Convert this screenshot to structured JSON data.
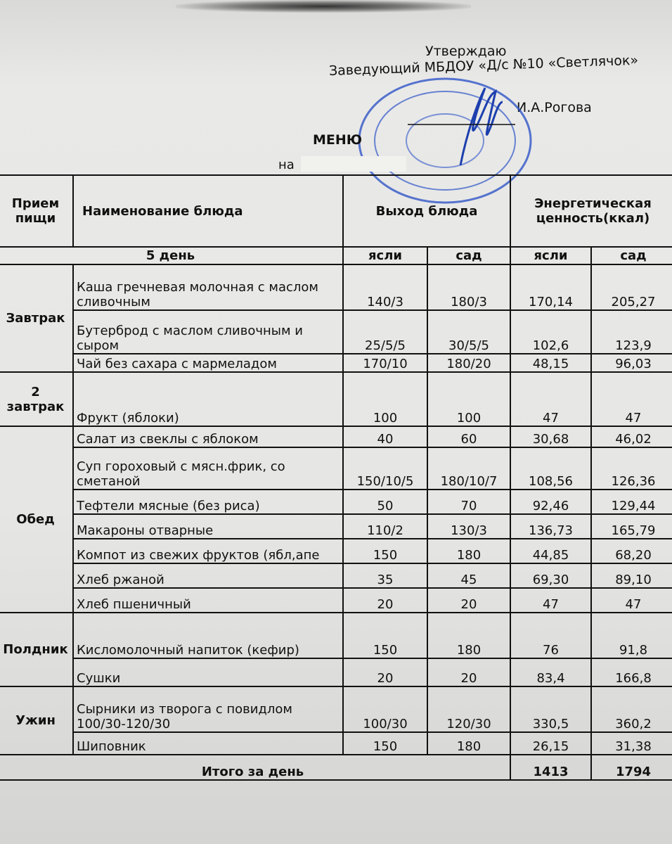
{
  "header": {
    "approve": "Утверждаю",
    "position": "Заведующий МБДОУ «Д/с №10 «Светлячок»",
    "signer": "И.А.Рогова",
    "title": "МЕНЮ",
    "date_prefix": "на"
  },
  "stamp": {
    "color": "#2f55c8",
    "signature_color": "#1d3fae"
  },
  "table": {
    "col_meal": "Прием пищи",
    "col_dish": "Наименование блюда",
    "col_output": "Выход блюда",
    "col_energy": "Энергетическая ценность(ккал)",
    "day": "5 день",
    "sub_yasli": "ясли",
    "sub_sad": "сад",
    "meals": [
      {
        "meal": "Завтрак",
        "items": [
          {
            "name": "Каша гречневая молочная с маслом сливочным",
            "out_yasli": "140/3",
            "out_sad": "180/3",
            "kcal_yasli": "170,14",
            "kcal_sad": "205,27"
          },
          {
            "name": "Бутерброд с маслом сливочным и сыром",
            "out_yasli": "25/5/5",
            "out_sad": "30/5/5",
            "kcal_yasli": "102,6",
            "kcal_sad": "123,9"
          },
          {
            "name": "Чай без сахара с мармеладом",
            "out_yasli": "170/10",
            "out_sad": "180/20",
            "kcal_yasli": "48,15",
            "kcal_sad": "96,03"
          }
        ]
      },
      {
        "meal": "2 завтрак",
        "items": [
          {
            "name": "Фрукт (яблоки)",
            "out_yasli": "100",
            "out_sad": "100",
            "kcal_yasli": "47",
            "kcal_sad": "47"
          }
        ]
      },
      {
        "meal": "Обед",
        "items": [
          {
            "name": "Салат из свеклы с яблоком",
            "out_yasli": "40",
            "out_sad": "60",
            "kcal_yasli": "30,68",
            "kcal_sad": "46,02"
          },
          {
            "name": "Суп гороховый с мясн.фрик, со сметаной",
            "out_yasli": "150/10/5",
            "out_sad": "180/10/7",
            "kcal_yasli": "108,56",
            "kcal_sad": "126,36"
          },
          {
            "name": "Тефтели мясные (без риса)",
            "out_yasli": "50",
            "out_sad": "70",
            "kcal_yasli": "92,46",
            "kcal_sad": "129,44"
          },
          {
            "name": "Макароны отварные",
            "out_yasli": "110/2",
            "out_sad": "130/3",
            "kcal_yasli": "136,73",
            "kcal_sad": "165,79"
          },
          {
            "name": "Компот из свежих фруктов (ябл,апе",
            "out_yasli": "150",
            "out_sad": "180",
            "kcal_yasli": "44,85",
            "kcal_sad": "68,20"
          },
          {
            "name": "Хлеб ржаной",
            "out_yasli": "35",
            "out_sad": "45",
            "kcal_yasli": "69,30",
            "kcal_sad": "89,10"
          },
          {
            "name": "Хлеб пшеничный",
            "out_yasli": "20",
            "out_sad": "20",
            "kcal_yasli": "47",
            "kcal_sad": "47"
          }
        ]
      },
      {
        "meal": "Полдник",
        "items": [
          {
            "name": "Кисломолочный напиток (кефир)",
            "out_yasli": "150",
            "out_sad": "180",
            "kcal_yasli": "76",
            "kcal_sad": "91,8"
          },
          {
            "name": "Сушки",
            "out_yasli": "20",
            "out_sad": "20",
            "kcal_yasli": "83,4",
            "kcal_sad": "166,8"
          }
        ]
      },
      {
        "meal": "Ужин",
        "items": [
          {
            "name": "Сырники из творога с повидлом 100/30-120/30",
            "out_yasli": "100/30",
            "out_sad": "120/30",
            "kcal_yasli": "330,5",
            "kcal_sad": "360,2"
          },
          {
            "name": "Шиповник",
            "out_yasli": "150",
            "out_sad": "180",
            "kcal_yasli": "26,15",
            "kcal_sad": "31,38"
          }
        ]
      }
    ],
    "total_label": "Итого за день",
    "total_yasli": "1413",
    "total_sad": "1794"
  }
}
